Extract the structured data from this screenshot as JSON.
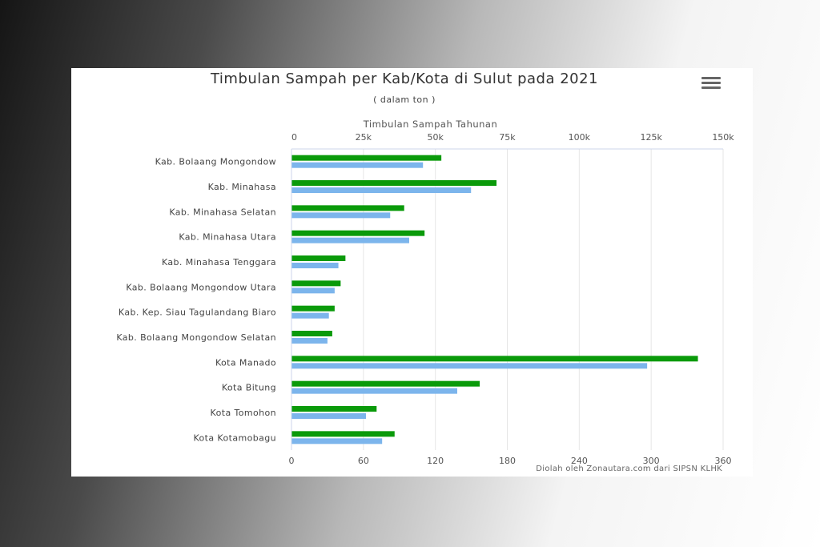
{
  "chart_data": {
    "type": "bar",
    "orientation": "horizontal",
    "title": "Timbulan Sampah per Kab/Kota di Sulut pada 2021",
    "subtitle": "( dalam ton )",
    "credit": "Diolah oleh Zonautara.com dari SIPSN KLHK",
    "menu_icon": "hamburger-menu-icon",
    "categories": [
      "Kab. Bolaang Mongondow",
      "Kab. Minahasa",
      "Kab. Minahasa Selatan",
      "Kab. Minahasa Utara",
      "Kab. Minahasa Tenggara",
      "Kab. Bolaang Mongondow Utara",
      "Kab. Kep. Siau Tagulandang Biaro",
      "Kab. Bolaang Mongondow Selatan",
      "Kota Manado",
      "Kota Bitung",
      "Kota Tomohon",
      "Kota Kotamobagu"
    ],
    "top_axis": {
      "label": "Timbulan Sampah Tahunan",
      "range": [
        0,
        150000
      ],
      "ticks": [
        0,
        25000,
        50000,
        75000,
        100000,
        125000,
        150000
      ],
      "tick_labels": [
        "0",
        "25k",
        "50k",
        "75k",
        "100k",
        "125k",
        "150k"
      ]
    },
    "bottom_axis": {
      "label": "",
      "range": [
        0,
        360
      ],
      "ticks": [
        0,
        60,
        120,
        180,
        240,
        300,
        360
      ],
      "tick_labels": [
        "0",
        "60",
        "120",
        "180",
        "240",
        "300",
        "360"
      ]
    },
    "grid": true,
    "series": [
      {
        "axis": "bottom",
        "color": "#0a9a0a",
        "values": [
          125,
          171,
          94,
          111,
          45,
          41,
          36,
          34,
          339,
          157,
          71,
          86
        ]
      },
      {
        "axis": "top",
        "color": "#7cb5ec",
        "values": [
          45700,
          62400,
          34300,
          40900,
          16300,
          15000,
          13000,
          12500,
          123600,
          57600,
          25900,
          31500
        ]
      }
    ]
  }
}
